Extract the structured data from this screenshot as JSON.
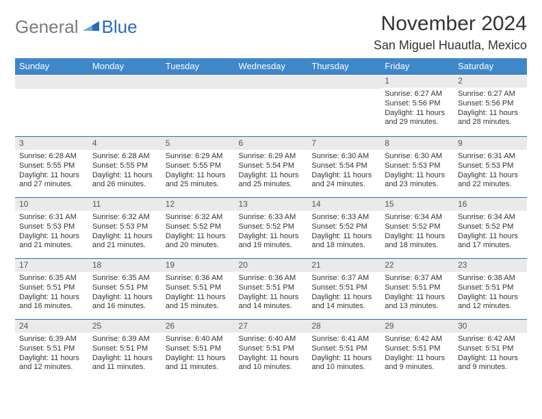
{
  "logo": {
    "word1": "General",
    "word2": "Blue",
    "mark_color": "#2a6bb3"
  },
  "header": {
    "month": "November 2024",
    "location": "San Miguel Huautla, Mexico"
  },
  "weekdays": [
    "Sunday",
    "Monday",
    "Tuesday",
    "Wednesday",
    "Thursday",
    "Friday",
    "Saturday"
  ],
  "style": {
    "header_bg": "#3f87c9",
    "header_text": "#ffffff",
    "row_border": "#2a6bb3",
    "daynum_bg": "#eaeaea",
    "daynum_text": "#555555",
    "body_text": "#333333",
    "month_fontsize": 30,
    "location_fontsize": 18,
    "th_fontsize": 13,
    "cell_fontsize": 11
  },
  "weeks": [
    [
      {
        "n": "",
        "lines": []
      },
      {
        "n": "",
        "lines": []
      },
      {
        "n": "",
        "lines": []
      },
      {
        "n": "",
        "lines": []
      },
      {
        "n": "",
        "lines": []
      },
      {
        "n": "1",
        "lines": [
          "Sunrise: 6:27 AM",
          "Sunset: 5:56 PM",
          "Daylight: 11 hours and 29 minutes."
        ]
      },
      {
        "n": "2",
        "lines": [
          "Sunrise: 6:27 AM",
          "Sunset: 5:56 PM",
          "Daylight: 11 hours and 28 minutes."
        ]
      }
    ],
    [
      {
        "n": "3",
        "lines": [
          "Sunrise: 6:28 AM",
          "Sunset: 5:55 PM",
          "Daylight: 11 hours and 27 minutes."
        ]
      },
      {
        "n": "4",
        "lines": [
          "Sunrise: 6:28 AM",
          "Sunset: 5:55 PM",
          "Daylight: 11 hours and 26 minutes."
        ]
      },
      {
        "n": "5",
        "lines": [
          "Sunrise: 6:29 AM",
          "Sunset: 5:55 PM",
          "Daylight: 11 hours and 25 minutes."
        ]
      },
      {
        "n": "6",
        "lines": [
          "Sunrise: 6:29 AM",
          "Sunset: 5:54 PM",
          "Daylight: 11 hours and 25 minutes."
        ]
      },
      {
        "n": "7",
        "lines": [
          "Sunrise: 6:30 AM",
          "Sunset: 5:54 PM",
          "Daylight: 11 hours and 24 minutes."
        ]
      },
      {
        "n": "8",
        "lines": [
          "Sunrise: 6:30 AM",
          "Sunset: 5:53 PM",
          "Daylight: 11 hours and 23 minutes."
        ]
      },
      {
        "n": "9",
        "lines": [
          "Sunrise: 6:31 AM",
          "Sunset: 5:53 PM",
          "Daylight: 11 hours and 22 minutes."
        ]
      }
    ],
    [
      {
        "n": "10",
        "lines": [
          "Sunrise: 6:31 AM",
          "Sunset: 5:53 PM",
          "Daylight: 11 hours and 21 minutes."
        ]
      },
      {
        "n": "11",
        "lines": [
          "Sunrise: 6:32 AM",
          "Sunset: 5:53 PM",
          "Daylight: 11 hours and 21 minutes."
        ]
      },
      {
        "n": "12",
        "lines": [
          "Sunrise: 6:32 AM",
          "Sunset: 5:52 PM",
          "Daylight: 11 hours and 20 minutes."
        ]
      },
      {
        "n": "13",
        "lines": [
          "Sunrise: 6:33 AM",
          "Sunset: 5:52 PM",
          "Daylight: 11 hours and 19 minutes."
        ]
      },
      {
        "n": "14",
        "lines": [
          "Sunrise: 6:33 AM",
          "Sunset: 5:52 PM",
          "Daylight: 11 hours and 18 minutes."
        ]
      },
      {
        "n": "15",
        "lines": [
          "Sunrise: 6:34 AM",
          "Sunset: 5:52 PM",
          "Daylight: 11 hours and 18 minutes."
        ]
      },
      {
        "n": "16",
        "lines": [
          "Sunrise: 6:34 AM",
          "Sunset: 5:52 PM",
          "Daylight: 11 hours and 17 minutes."
        ]
      }
    ],
    [
      {
        "n": "17",
        "lines": [
          "Sunrise: 6:35 AM",
          "Sunset: 5:51 PM",
          "Daylight: 11 hours and 16 minutes."
        ]
      },
      {
        "n": "18",
        "lines": [
          "Sunrise: 6:35 AM",
          "Sunset: 5:51 PM",
          "Daylight: 11 hours and 16 minutes."
        ]
      },
      {
        "n": "19",
        "lines": [
          "Sunrise: 6:36 AM",
          "Sunset: 5:51 PM",
          "Daylight: 11 hours and 15 minutes."
        ]
      },
      {
        "n": "20",
        "lines": [
          "Sunrise: 6:36 AM",
          "Sunset: 5:51 PM",
          "Daylight: 11 hours and 14 minutes."
        ]
      },
      {
        "n": "21",
        "lines": [
          "Sunrise: 6:37 AM",
          "Sunset: 5:51 PM",
          "Daylight: 11 hours and 14 minutes."
        ]
      },
      {
        "n": "22",
        "lines": [
          "Sunrise: 6:37 AM",
          "Sunset: 5:51 PM",
          "Daylight: 11 hours and 13 minutes."
        ]
      },
      {
        "n": "23",
        "lines": [
          "Sunrise: 6:38 AM",
          "Sunset: 5:51 PM",
          "Daylight: 11 hours and 12 minutes."
        ]
      }
    ],
    [
      {
        "n": "24",
        "lines": [
          "Sunrise: 6:39 AM",
          "Sunset: 5:51 PM",
          "Daylight: 11 hours and 12 minutes."
        ]
      },
      {
        "n": "25",
        "lines": [
          "Sunrise: 6:39 AM",
          "Sunset: 5:51 PM",
          "Daylight: 11 hours and 11 minutes."
        ]
      },
      {
        "n": "26",
        "lines": [
          "Sunrise: 6:40 AM",
          "Sunset: 5:51 PM",
          "Daylight: 11 hours and 11 minutes."
        ]
      },
      {
        "n": "27",
        "lines": [
          "Sunrise: 6:40 AM",
          "Sunset: 5:51 PM",
          "Daylight: 11 hours and 10 minutes."
        ]
      },
      {
        "n": "28",
        "lines": [
          "Sunrise: 6:41 AM",
          "Sunset: 5:51 PM",
          "Daylight: 11 hours and 10 minutes."
        ]
      },
      {
        "n": "29",
        "lines": [
          "Sunrise: 6:42 AM",
          "Sunset: 5:51 PM",
          "Daylight: 11 hours and 9 minutes."
        ]
      },
      {
        "n": "30",
        "lines": [
          "Sunrise: 6:42 AM",
          "Sunset: 5:51 PM",
          "Daylight: 11 hours and 9 minutes."
        ]
      }
    ]
  ]
}
